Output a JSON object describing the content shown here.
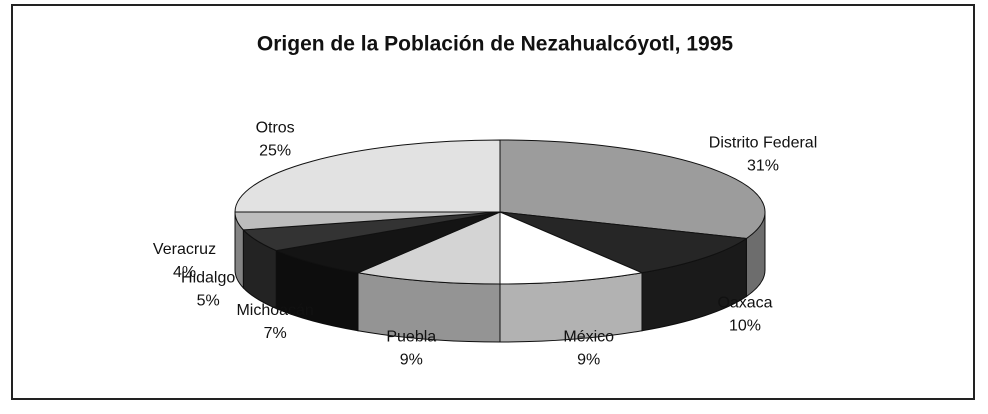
{
  "chart_data": {
    "type": "pie",
    "title": "Origen de la Población de Nezahualcóyotl, 1995",
    "categories": [
      "Distrito Federal",
      "Oaxaca",
      "México",
      "Puebla",
      "Michoacán",
      "Hidalgo",
      "Veracruz",
      "Otros"
    ],
    "values": [
      31,
      10,
      9,
      9,
      7,
      5,
      4,
      25
    ],
    "value_labels": [
      "31%",
      "10%",
      "9%",
      "9%",
      "7%",
      "5%",
      "4%",
      "25%"
    ],
    "colors": [
      "#9c9c9c",
      "#262626",
      "#ffffff",
      "#d4d4d4",
      "#141414",
      "#333333",
      "#bdbdbd",
      "#e2e2e2"
    ]
  }
}
